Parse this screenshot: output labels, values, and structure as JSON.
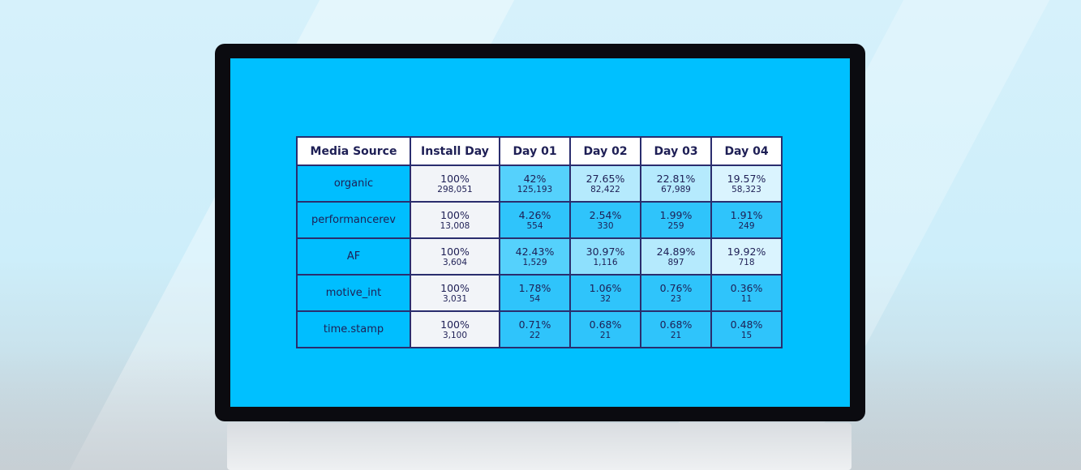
{
  "table": {
    "headers": [
      "Media Source",
      "Install Day",
      "Day 01",
      "Day 02",
      "Day 03",
      "Day 04"
    ],
    "rows": [
      {
        "source": "organic",
        "install": {
          "pct": "100%",
          "count": "298,051"
        },
        "days": [
          {
            "pct": "42%",
            "count": "125,193"
          },
          {
            "pct": "27.65%",
            "count": "82,422"
          },
          {
            "pct": "22.81%",
            "count": "67,989"
          },
          {
            "pct": "19.57%",
            "count": "58,323"
          }
        ]
      },
      {
        "source": "performancerev",
        "install": {
          "pct": "100%",
          "count": "13,008"
        },
        "days": [
          {
            "pct": "4.26%",
            "count": "554"
          },
          {
            "pct": "2.54%",
            "count": "330"
          },
          {
            "pct": "1.99%",
            "count": "259"
          },
          {
            "pct": "1.91%",
            "count": "249"
          }
        ]
      },
      {
        "source": "AF",
        "install": {
          "pct": "100%",
          "count": "3,604"
        },
        "days": [
          {
            "pct": "42.43%",
            "count": "1,529"
          },
          {
            "pct": "30.97%",
            "count": "1,116"
          },
          {
            "pct": "24.89%",
            "count": "897"
          },
          {
            "pct": "19.92%",
            "count": "718"
          }
        ]
      },
      {
        "source": "motive_int",
        "install": {
          "pct": "100%",
          "count": "3,031"
        },
        "days": [
          {
            "pct": "1.78%",
            "count": "54"
          },
          {
            "pct": "1.06%",
            "count": "32"
          },
          {
            "pct": "0.76%",
            "count": "23"
          },
          {
            "pct": "0.36%",
            "count": "11"
          }
        ]
      },
      {
        "source": "time.stamp",
        "install": {
          "pct": "100%",
          "count": "3,100"
        },
        "days": [
          {
            "pct": "0.71%",
            "count": "22"
          },
          {
            "pct": "0.68%",
            "count": "21"
          },
          {
            "pct": "0.68%",
            "count": "21"
          },
          {
            "pct": "0.48%",
            "count": "15"
          }
        ]
      }
    ]
  },
  "colors": {
    "screen": "#00c0ff",
    "border": "#2a2d6e",
    "text": "#1e1f55"
  }
}
